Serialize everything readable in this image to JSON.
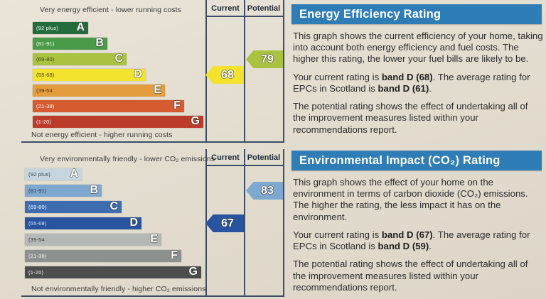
{
  "colors": {
    "banner_blue": "#2e7db6",
    "line_dark": "#3c4d66",
    "paper": "#e3ddd0"
  },
  "chart_data": [
    {
      "type": "bar",
      "name": "Energy Efficiency Rating",
      "top_label": "Very energy efficient - lower running costs",
      "bottom_label": "Not energy efficient - higher running costs",
      "column_headers": [
        "Current",
        "Potential"
      ],
      "bands": [
        {
          "letter": "A",
          "range": "(92 plus)",
          "color": "#256c3d",
          "label_color": "#ffffff"
        },
        {
          "letter": "B",
          "range": "(81-91)",
          "color": "#4a9b47",
          "label_color": "#ffffff"
        },
        {
          "letter": "C",
          "range": "(69-80)",
          "color": "#a9c23f",
          "label_color": "#3a3a1e"
        },
        {
          "letter": "D",
          "range": "(55-68)",
          "color": "#f3e32e",
          "label_color": "#4a441a"
        },
        {
          "letter": "E",
          "range": "(39-54",
          "color": "#e39c3e",
          "label_color": "#4a3414"
        },
        {
          "letter": "F",
          "range": "(21-38)",
          "color": "#d65b30",
          "label_color": "#ffffff"
        },
        {
          "letter": "G",
          "range": "(1-20)",
          "color": "#bc3c2b",
          "label_color": "#ffffff"
        }
      ],
      "current": {
        "value": "68",
        "band": "D",
        "arrow_color": "#f3e32e"
      },
      "potential": {
        "value": "79",
        "band": "C",
        "arrow_color": "#a9c23f"
      }
    },
    {
      "type": "bar",
      "name": "Environmental Impact (CO₂) Rating",
      "top_label": "Very environmentally friendly - lower CO₂ emissions",
      "bottom_label": "Not environmentally friendly - higher CO₂ emissions",
      "column_headers": [
        "Current",
        "Potential"
      ],
      "bands": [
        {
          "letter": "A",
          "range": "(92 plus)",
          "color": "#c7d6de",
          "label_color": "#33414c"
        },
        {
          "letter": "B",
          "range": "(81-91)",
          "color": "#7fa8d0",
          "label_color": "#22344a"
        },
        {
          "letter": "C",
          "range": "(69-80)",
          "color": "#3e6cb0",
          "label_color": "#ffffff"
        },
        {
          "letter": "D",
          "range": "(55-68)",
          "color": "#27539f",
          "label_color": "#dfe6ef"
        },
        {
          "letter": "E",
          "range": "(39-54",
          "color": "#b4b9b6",
          "label_color": "#373d3a"
        },
        {
          "letter": "F",
          "range": "(21-38)",
          "color": "#8c918e",
          "label_color": "#f2f2f2"
        },
        {
          "letter": "G",
          "range": "(1-20)",
          "color": "#4c4e4d",
          "label_color": "#f2f2f2"
        }
      ],
      "current": {
        "value": "67",
        "band": "D",
        "arrow_color": "#27539f"
      },
      "potential": {
        "value": "83",
        "band": "B",
        "arrow_color": "#7fa8d0"
      }
    }
  ],
  "panels": [
    {
      "title": "Energy Efficiency Rating",
      "paragraphs": [
        [
          {
            "t": "This graph shows the current efficiency of your home, taking into account both energy efficiency and fuel costs. The higher this rating, the lower your fuel bills are likely to be.",
            "b": false
          }
        ],
        [
          {
            "t": "Your current rating is ",
            "b": false
          },
          {
            "t": "band D (68)",
            "b": true
          },
          {
            "t": ". The average rating for EPCs in Scotland is ",
            "b": false
          },
          {
            "t": "band D (61)",
            "b": true
          },
          {
            "t": ".",
            "b": false
          }
        ],
        [
          {
            "t": "The potential rating shows the effect of undertaking all of the improvement measures listed within your recommendations report.",
            "b": false
          }
        ]
      ]
    },
    {
      "title": "Environmental Impact (CO₂) Rating",
      "paragraphs": [
        [
          {
            "t": "This graph shows the effect of your home on the environment in terms of carbon dioxide (CO₂) emissions. The higher the rating, the less impact it has on the environment.",
            "b": false
          }
        ],
        [
          {
            "t": "Your current rating is ",
            "b": false
          },
          {
            "t": "band D (67)",
            "b": true
          },
          {
            "t": ". The average rating for EPCs in Scotland is ",
            "b": false
          },
          {
            "t": "band D (59)",
            "b": true
          },
          {
            "t": ".",
            "b": false
          }
        ],
        [
          {
            "t": "The potential rating shows the effect of undertaking all of the improvement measures listed within your recommendations report.",
            "b": false
          }
        ]
      ]
    }
  ]
}
